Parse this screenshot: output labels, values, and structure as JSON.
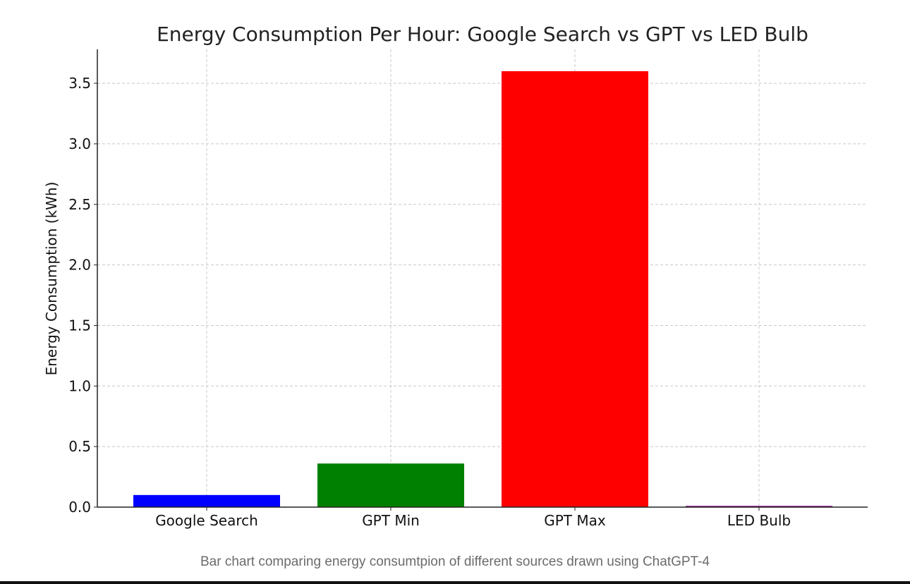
{
  "chart_data": {
    "type": "bar",
    "title": "Energy Consumption Per Hour: Google Search vs GPT vs LED Bulb",
    "xlabel": "",
    "ylabel": "Energy Consumption (kWh)",
    "categories": [
      "Google Search",
      "GPT Min",
      "GPT Max",
      "LED Bulb"
    ],
    "values": [
      0.1,
      0.36,
      3.6,
      0.01
    ],
    "colors": [
      "#0000ff",
      "#008000",
      "#ff0000",
      "#800080"
    ],
    "ylim": [
      0,
      3.78
    ],
    "yticks": [
      "0.0",
      "0.5",
      "1.0",
      "1.5",
      "2.0",
      "2.5",
      "3.0",
      "3.5"
    ],
    "grid": true
  },
  "caption": "Bar chart comparing energy consumtpion of different sources drawn using ChatGPT-4"
}
